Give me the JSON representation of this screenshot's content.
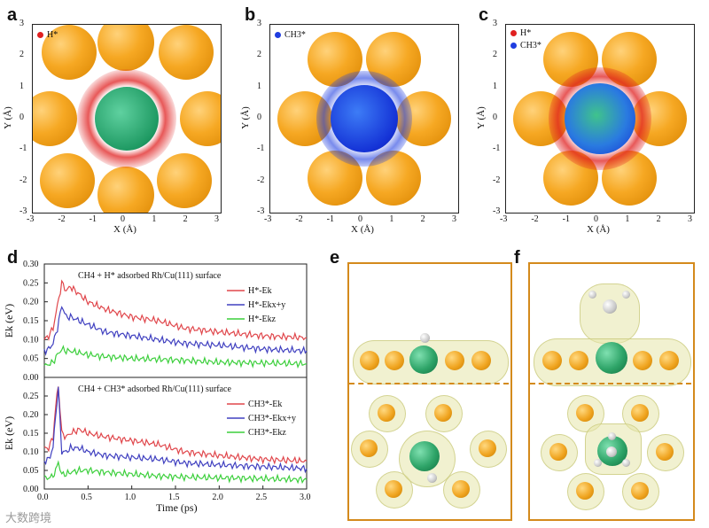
{
  "panels": {
    "a": {
      "letter": "a",
      "legend": [
        "H*"
      ],
      "legend_colors": [
        "#e02020"
      ]
    },
    "b": {
      "letter": "b",
      "legend": [
        "CH3*"
      ],
      "legend_colors": [
        "#1f3de0"
      ]
    },
    "c": {
      "letter": "c",
      "legend": [
        "H*",
        "CH3*"
      ],
      "legend_colors": [
        "#e02020",
        "#1f3de0"
      ]
    },
    "d": {
      "letter": "d"
    },
    "e": {
      "letter": "e"
    },
    "f": {
      "letter": "f"
    }
  },
  "scatter_axes": {
    "xlabel": "X (Å)",
    "ylabel": "Y (Å)",
    "xticks": [
      "-3",
      "-2",
      "-1",
      "0",
      "1",
      "2",
      "3"
    ],
    "yticks": [
      "3",
      "2",
      "1",
      "0",
      "-1",
      "-2",
      "-3"
    ]
  },
  "colors": {
    "gold": "#f6a823",
    "h_red": "#e02020",
    "ch3_blue": "#1f3de0",
    "rh_green": "#2ea468",
    "frame": "#d48a1c"
  },
  "chart_data": [
    {
      "type": "line",
      "title": "CH4 + H* adsorbed Rh/Cu(111) surface",
      "ylabel": "Ek (eV)",
      "ylim": [
        0,
        0.3
      ],
      "xlim": [
        0,
        3.0
      ],
      "yticks": [
        "0.30",
        "0.25",
        "0.20",
        "0.15",
        "0.10",
        "0.05",
        "0.00"
      ],
      "series": [
        {
          "name": "H*-Ek",
          "color": "#e0464b",
          "x": [
            0,
            0.05,
            0.1,
            0.15,
            0.2,
            0.25,
            0.3,
            0.4,
            0.5,
            0.7,
            1.0,
            1.3,
            1.6,
            2.0,
            2.5,
            3.0
          ],
          "values": [
            0.1,
            0.11,
            0.13,
            0.19,
            0.25,
            0.23,
            0.24,
            0.22,
            0.2,
            0.18,
            0.16,
            0.15,
            0.13,
            0.12,
            0.11,
            0.105
          ]
        },
        {
          "name": "H*-Ekx+y",
          "color": "#4040c0",
          "x": [
            0,
            0.05,
            0.1,
            0.15,
            0.2,
            0.25,
            0.3,
            0.4,
            0.5,
            0.7,
            1.0,
            1.3,
            1.6,
            2.0,
            2.5,
            3.0
          ],
          "values": [
            0.07,
            0.075,
            0.09,
            0.13,
            0.19,
            0.16,
            0.16,
            0.15,
            0.14,
            0.12,
            0.11,
            0.1,
            0.09,
            0.085,
            0.075,
            0.07
          ]
        },
        {
          "name": "H*-Ekz",
          "color": "#3ccf3c",
          "x": [
            0,
            0.05,
            0.1,
            0.15,
            0.2,
            0.25,
            0.3,
            0.4,
            0.5,
            0.7,
            1.0,
            1.3,
            1.6,
            2.0,
            2.5,
            3.0
          ],
          "values": [
            0.03,
            0.035,
            0.04,
            0.06,
            0.075,
            0.07,
            0.07,
            0.065,
            0.06,
            0.055,
            0.05,
            0.048,
            0.045,
            0.04,
            0.038,
            0.036
          ]
        }
      ],
      "legend": [
        "H*-Ek",
        "H*-Ekx+y",
        "H*-Ekz"
      ]
    },
    {
      "type": "line",
      "title": "CH4 + CH3* adsorbed Rh/Cu(111) surface",
      "xlabel": "Time (ps)",
      "ylabel": "Ek (eV)",
      "ylim": [
        0,
        0.3
      ],
      "xlim": [
        0,
        3.0
      ],
      "xticks": [
        "0.0",
        "0.5",
        "1.0",
        "1.5",
        "2.0",
        "2.5",
        "3.0"
      ],
      "yticks": [
        "0.25",
        "0.20",
        "0.15",
        "0.10",
        "0.05",
        "0.00"
      ],
      "series": [
        {
          "name": "CH3*-Ek",
          "color": "#e0464b",
          "x": [
            0,
            0.05,
            0.1,
            0.13,
            0.16,
            0.2,
            0.25,
            0.3,
            0.4,
            0.5,
            0.7,
            1.0,
            1.3,
            1.6,
            2.0,
            2.5,
            3.0
          ],
          "values": [
            0.11,
            0.11,
            0.14,
            0.22,
            0.28,
            0.15,
            0.14,
            0.15,
            0.16,
            0.15,
            0.14,
            0.13,
            0.12,
            0.1,
            0.09,
            0.08,
            0.075
          ]
        },
        {
          "name": "CH3*-Ekx+y",
          "color": "#4040c0",
          "x": [
            0,
            0.05,
            0.1,
            0.13,
            0.16,
            0.2,
            0.25,
            0.3,
            0.4,
            0.5,
            0.7,
            1.0,
            1.3,
            1.6,
            2.0,
            2.5,
            3.0
          ],
          "values": [
            0.075,
            0.08,
            0.11,
            0.2,
            0.27,
            0.1,
            0.1,
            0.11,
            0.11,
            0.1,
            0.09,
            0.085,
            0.08,
            0.07,
            0.065,
            0.06,
            0.055
          ]
        },
        {
          "name": "CH3*-Ekz",
          "color": "#3ccf3c",
          "x": [
            0,
            0.05,
            0.1,
            0.13,
            0.16,
            0.2,
            0.25,
            0.3,
            0.4,
            0.5,
            0.7,
            1.0,
            1.3,
            1.6,
            2.0,
            2.5,
            3.0
          ],
          "values": [
            0.03,
            0.03,
            0.035,
            0.05,
            0.07,
            0.04,
            0.04,
            0.045,
            0.05,
            0.05,
            0.045,
            0.04,
            0.035,
            0.032,
            0.03,
            0.028,
            0.025
          ]
        }
      ],
      "legend": [
        "CH3*-Ek",
        "CH3*-Ekx+y",
        "CH3*-Ekz"
      ]
    }
  ],
  "watermark": "大数跨境"
}
